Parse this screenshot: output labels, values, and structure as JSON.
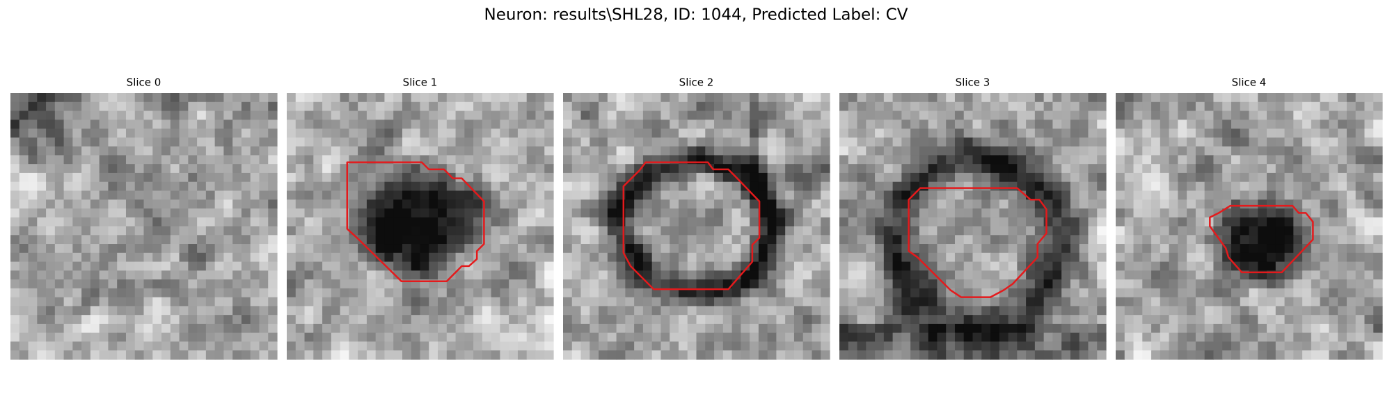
{
  "title": "Neuron: results\\SHL28, ID: 1044, Predicted Label: CV",
  "panels": [
    {
      "title": "Slice 0"
    },
    {
      "title": "Slice 1"
    },
    {
      "title": "Slice 2"
    },
    {
      "title": "Slice 3"
    },
    {
      "title": "Slice 4"
    }
  ]
}
